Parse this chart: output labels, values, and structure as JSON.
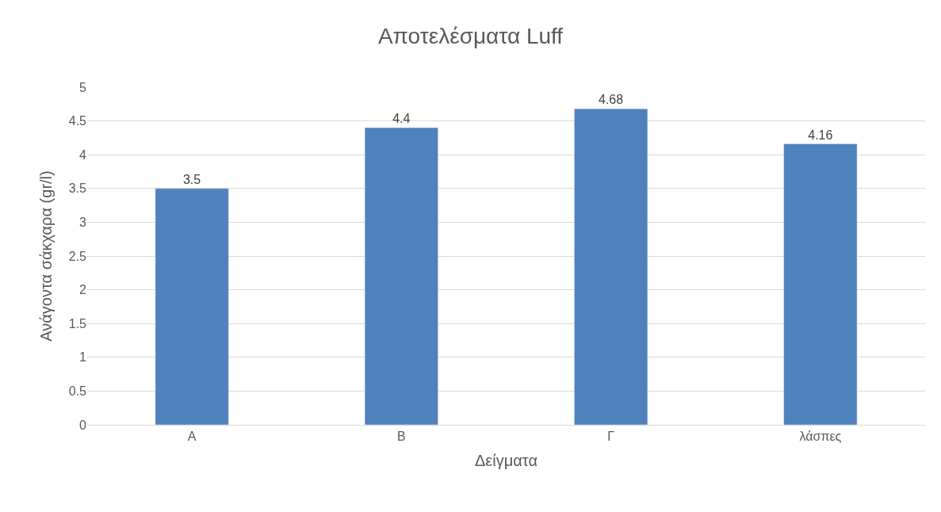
{
  "chart_data": {
    "type": "bar",
    "title": "Αποτελέσματα Luff",
    "xlabel": "Δείγματα",
    "ylabel": "Ανάγοντα σάκχαρα (gr/l)",
    "categories": [
      "Α",
      "Β",
      "Γ",
      "λάσπες"
    ],
    "values": [
      3.5,
      4.4,
      4.68,
      4.16
    ],
    "color": "#4f81bd",
    "ylim": [
      0,
      5
    ],
    "yticks": [
      0,
      0.5,
      1,
      1.5,
      2,
      2.5,
      3,
      3.5,
      4,
      4.5,
      5
    ],
    "grid": "y",
    "data_labels": true
  }
}
